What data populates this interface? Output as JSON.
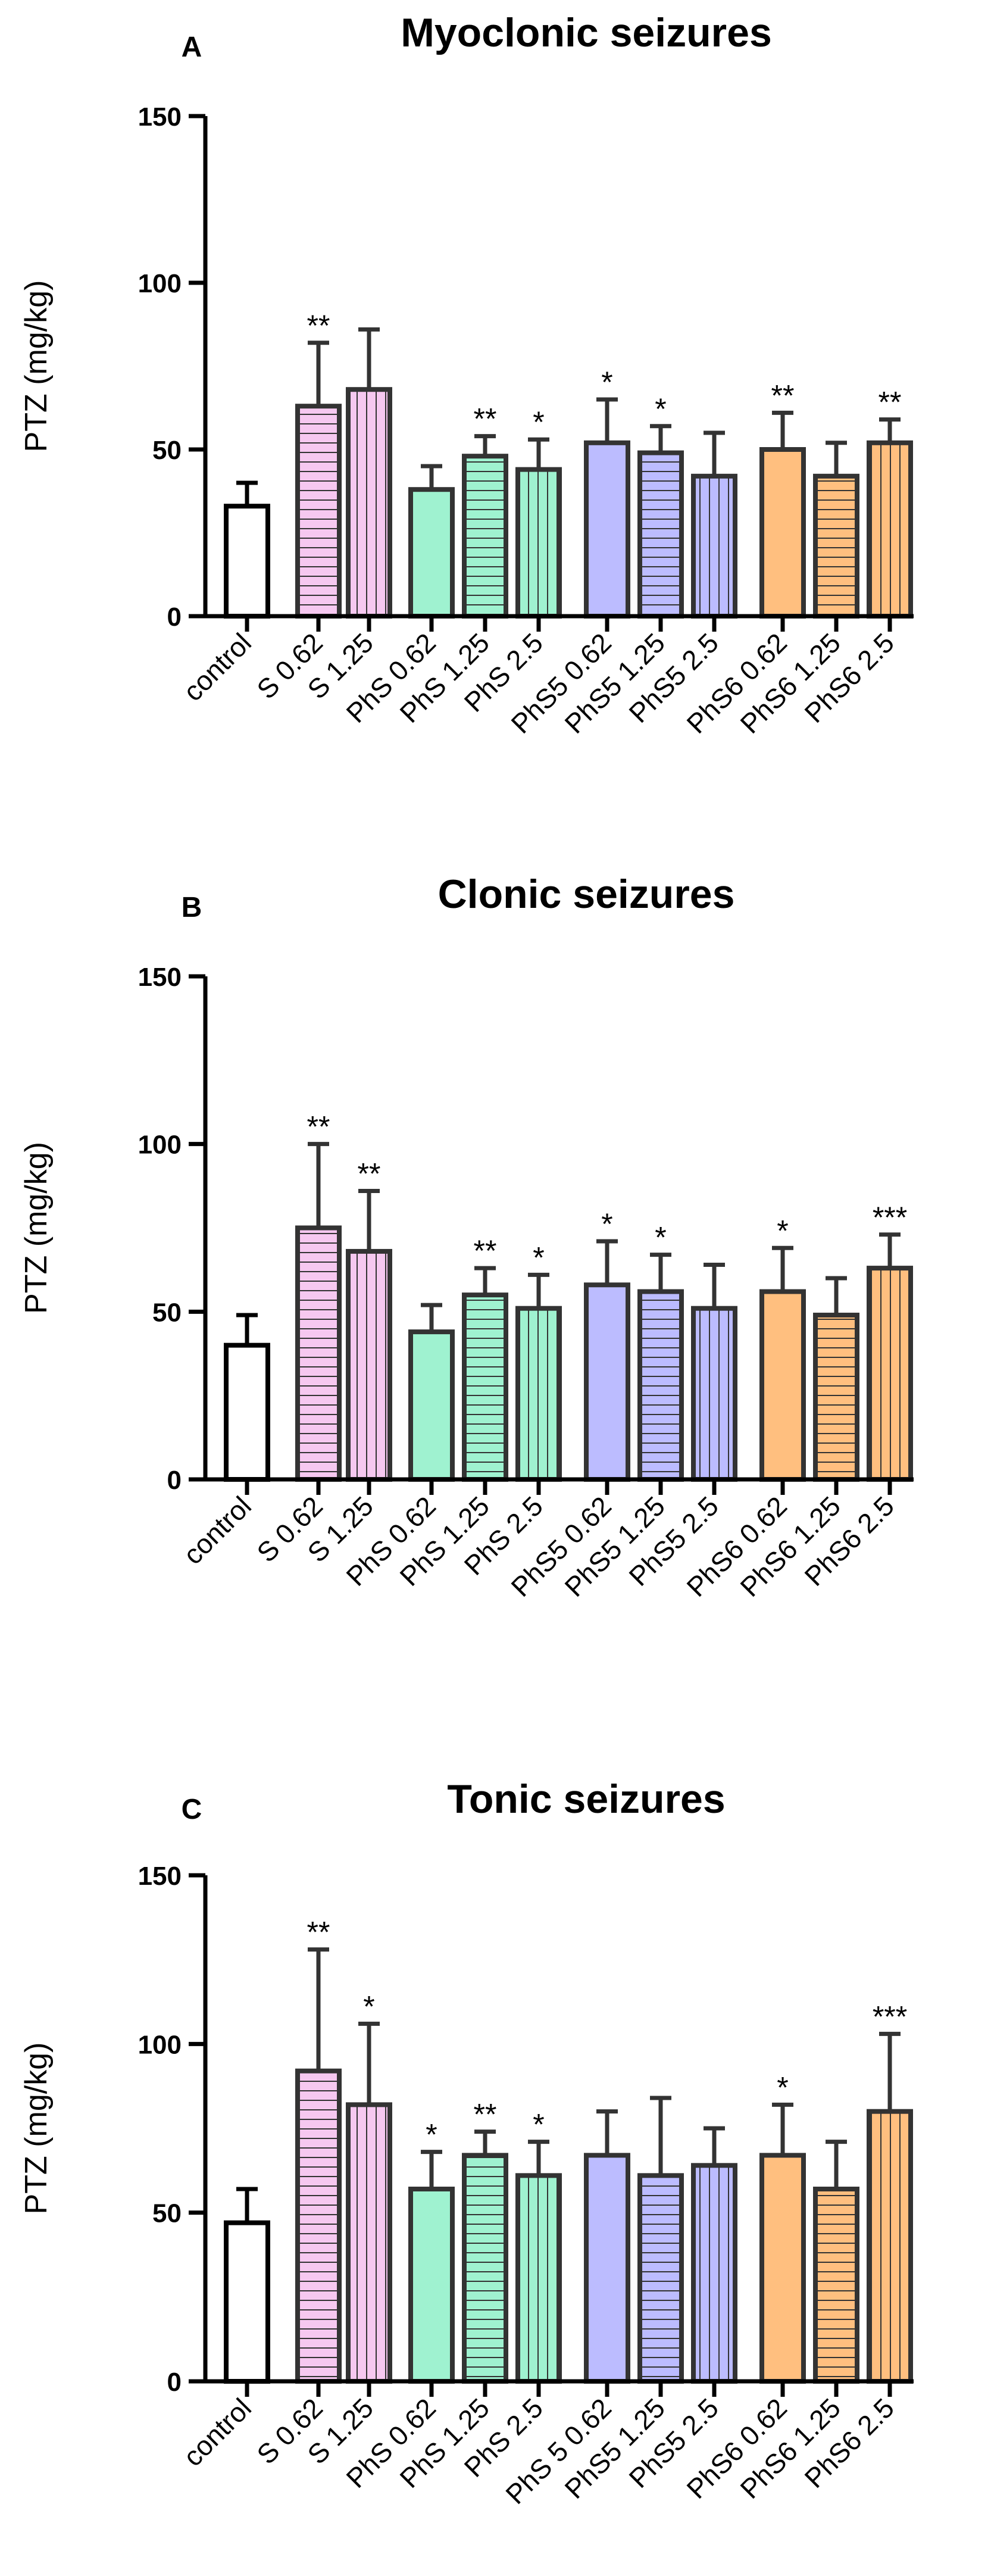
{
  "colors": {
    "control": "#ffffff",
    "s": "#f6c8f0",
    "phs": "#9ff2d0",
    "phs5": "#bcbcff",
    "phs6": "#ffbf7f",
    "outline": "#333333",
    "axis": "#000000"
  },
  "chart_data": [
    {
      "type": "bar",
      "panel_letter": "A",
      "title": "Myoclonic seizures",
      "xlabel": "",
      "ylabel": "PTZ (mg/kg)",
      "ylim": [
        0,
        150
      ],
      "yticks": [
        "0",
        "50",
        "100",
        "150"
      ],
      "categories": [
        "control",
        "S 0.62",
        "S 1.25",
        "PhS 0.62",
        "PhS 1.25",
        "PhS 2.5",
        "PhS5 0.62",
        "PhS5 1.25",
        "PhS5 2.5",
        "PhS6 0.62",
        "PhS6 1.25",
        "PhS6 2.5"
      ],
      "values": [
        33,
        63,
        68,
        38,
        48,
        44,
        52,
        49,
        42,
        50,
        42,
        52
      ],
      "error": [
        7,
        19,
        18,
        7,
        6,
        9,
        13,
        8,
        13,
        11,
        10,
        7
      ],
      "significance": [
        "",
        "**",
        "",
        "",
        "**",
        "*",
        "*",
        "*",
        "",
        "**",
        "",
        "**"
      ],
      "groups": [
        "control",
        "s",
        "s",
        "phs",
        "phs",
        "phs",
        "phs5",
        "phs5",
        "phs5",
        "phs6",
        "phs6",
        "phs6"
      ],
      "patterns": [
        "none",
        "horizontal",
        "vertical",
        "none",
        "horizontal",
        "vertical",
        "none",
        "horizontal",
        "vertical",
        "none",
        "horizontal",
        "vertical"
      ]
    },
    {
      "type": "bar",
      "panel_letter": "B",
      "title": "Clonic seizures",
      "xlabel": "",
      "ylabel": "PTZ (mg/kg)",
      "ylim": [
        0,
        150
      ],
      "yticks": [
        "0",
        "50",
        "100",
        "150"
      ],
      "categories": [
        "control",
        "S 0.62",
        "S 1.25",
        "PhS 0.62",
        "PhS 1.25",
        "PhS 2.5",
        "PhS5 0.62",
        "PhS5 1.25",
        "PhS5 2.5",
        "PhS6 0.62",
        "PhS6 1.25",
        "PhS6 2.5"
      ],
      "values": [
        40,
        75,
        68,
        44,
        55,
        51,
        58,
        56,
        51,
        56,
        49,
        63
      ],
      "error": [
        9,
        25,
        18,
        8,
        8,
        10,
        13,
        11,
        13,
        13,
        11,
        10
      ],
      "significance": [
        "",
        "**",
        "**",
        "",
        "**",
        "*",
        "*",
        "*",
        "",
        "*",
        "",
        "***"
      ],
      "groups": [
        "control",
        "s",
        "s",
        "phs",
        "phs",
        "phs",
        "phs5",
        "phs5",
        "phs5",
        "phs6",
        "phs6",
        "phs6"
      ],
      "patterns": [
        "none",
        "horizontal",
        "vertical",
        "none",
        "horizontal",
        "vertical",
        "none",
        "horizontal",
        "vertical",
        "none",
        "horizontal",
        "vertical"
      ]
    },
    {
      "type": "bar",
      "panel_letter": "C",
      "title": "Tonic seizures",
      "xlabel": "",
      "ylabel": "PTZ (mg/kg)",
      "ylim": [
        0,
        150
      ],
      "yticks": [
        "0",
        "50",
        "100",
        "150"
      ],
      "categories": [
        "control",
        "S 0.62",
        "S 1.25",
        "PhS 0.62",
        "PhS 1.25",
        "PhS 2.5",
        "PhS 5 0.62",
        "PhS5 1.25",
        "PhS5 2.5",
        "PhS6 0.62",
        "PhS6 1.25",
        "PhS6 2.5"
      ],
      "values": [
        47,
        92,
        82,
        57,
        67,
        61,
        67,
        61,
        64,
        67,
        57,
        80
      ],
      "error": [
        10,
        36,
        24,
        11,
        7,
        10,
        13,
        23,
        11,
        15,
        14,
        23
      ],
      "significance": [
        "",
        "**",
        "*",
        "*",
        "**",
        "*",
        "",
        "",
        "",
        "*",
        "",
        "***"
      ],
      "groups": [
        "control",
        "s",
        "s",
        "phs",
        "phs",
        "phs",
        "phs5",
        "phs5",
        "phs5",
        "phs6",
        "phs6",
        "phs6"
      ],
      "patterns": [
        "none",
        "horizontal",
        "vertical",
        "none",
        "horizontal",
        "vertical",
        "none",
        "horizontal",
        "vertical",
        "none",
        "horizontal",
        "vertical"
      ]
    }
  ]
}
